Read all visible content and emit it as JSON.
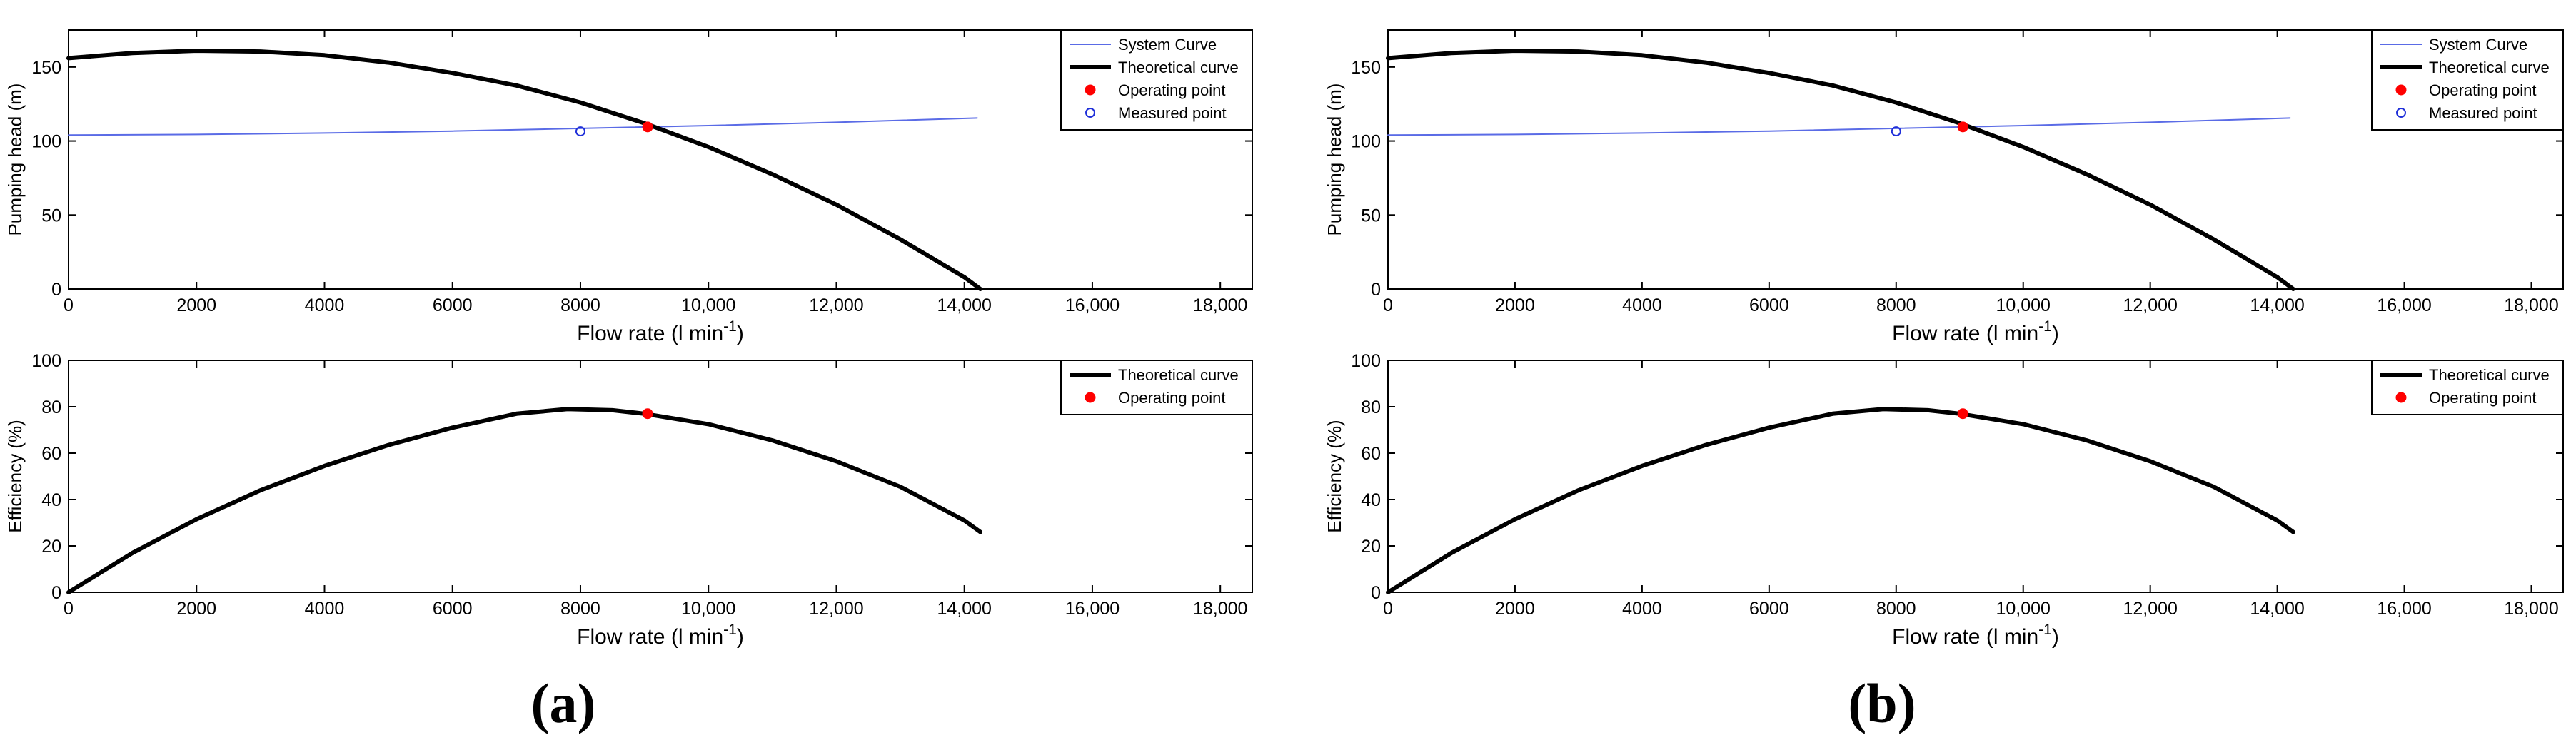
{
  "figure": {
    "panel_labels": [
      "(a)",
      "(b)"
    ]
  },
  "colors": {
    "system_curve": "#5A6BE6",
    "theoretical_curve": "#000000",
    "operating_point": "#FF0000",
    "measured_point": "#1F2FD9",
    "axes": "#000000"
  },
  "chart_data": [
    {
      "type": "line",
      "panel": "(a)",
      "subplot": "top",
      "xlabel": "Flow rate (l min",
      "xlabel_sup": "-1",
      "xlabel_close": ")",
      "ylabel": "Pumping head (m)",
      "xlim": [
        0,
        18500
      ],
      "ylim": [
        0,
        175
      ],
      "xticks": [
        0,
        2000,
        4000,
        6000,
        8000,
        10000,
        12000,
        14000,
        16000,
        18000
      ],
      "xtick_labels": [
        "0",
        "2000",
        "4000",
        "6000",
        "8000",
        "10,000",
        "12,000",
        "14,000",
        "16,000",
        "18,000"
      ],
      "yticks": [
        0,
        50,
        100,
        150
      ],
      "ytick_labels": [
        "0",
        "50",
        "100",
        "150"
      ],
      "grid": false,
      "legend_position": "top-right",
      "legend": [
        "System Curve",
        "Theoretical curve",
        "Operating point",
        "Measured point"
      ],
      "series": [
        {
          "name": "System Curve",
          "style": "thin-line",
          "color": "#5A6BE6",
          "x": [
            0,
            2000,
            4000,
            6000,
            8000,
            10000,
            12000,
            14200
          ],
          "y": [
            104,
            104.4,
            105.4,
            106.7,
            108.5,
            110.4,
            112.6,
            115.5
          ]
        },
        {
          "name": "Theoretical curve",
          "style": "thick-line",
          "color": "#000000",
          "x": [
            0,
            1000,
            2000,
            3000,
            4000,
            5000,
            6000,
            7000,
            8000,
            9000,
            10000,
            11000,
            12000,
            13000,
            14000,
            14250
          ],
          "y": [
            156,
            159.5,
            161,
            160.5,
            158,
            153,
            146,
            137.5,
            126,
            112,
            96,
            77.5,
            57,
            33.5,
            8,
            0
          ]
        },
        {
          "name": "Operating point",
          "style": "filled-marker",
          "color": "#FF0000",
          "x": [
            9050
          ],
          "y": [
            109.5
          ]
        },
        {
          "name": "Measured point",
          "style": "open-marker",
          "color": "#1F2FD9",
          "x": [
            8000
          ],
          "y": [
            106.5
          ]
        }
      ]
    },
    {
      "type": "line",
      "panel": "(a)",
      "subplot": "bottom",
      "xlabel": "Flow rate (l min",
      "xlabel_sup": "-1",
      "xlabel_close": ")",
      "ylabel": "Efficiency (%)",
      "xlim": [
        0,
        18500
      ],
      "ylim": [
        0,
        100
      ],
      "xticks": [
        0,
        2000,
        4000,
        6000,
        8000,
        10000,
        12000,
        14000,
        16000,
        18000
      ],
      "xtick_labels": [
        "0",
        "2000",
        "4000",
        "6000",
        "8000",
        "10,000",
        "12,000",
        "14,000",
        "16,000",
        "18,000"
      ],
      "yticks": [
        0,
        20,
        40,
        60,
        80,
        100
      ],
      "ytick_labels": [
        "0",
        "20",
        "40",
        "60",
        "80",
        "100"
      ],
      "grid": false,
      "legend_position": "top-right",
      "legend": [
        "Theoretical curve",
        "Operating point"
      ],
      "series": [
        {
          "name": "Theoretical curve",
          "style": "thick-line",
          "color": "#000000",
          "x": [
            0,
            1000,
            2000,
            3000,
            4000,
            5000,
            6000,
            7000,
            7800,
            8500,
            9000,
            10000,
            11000,
            12000,
            13000,
            14000,
            14250
          ],
          "y": [
            0,
            17,
            31.5,
            44,
            54.5,
            63.5,
            71,
            77,
            79,
            78.5,
            77,
            72.5,
            65.5,
            56.5,
            45.5,
            31,
            26
          ]
        },
        {
          "name": "Operating point",
          "style": "filled-marker",
          "color": "#FF0000",
          "x": [
            9050
          ],
          "y": [
            77
          ]
        }
      ]
    },
    {
      "type": "line",
      "panel": "(b)",
      "subplot": "top",
      "xlabel": "Flow rate (l min",
      "xlabel_sup": "-1",
      "xlabel_close": ")",
      "ylabel": "Pumping head (m)",
      "xlim": [
        0,
        18500
      ],
      "ylim": [
        0,
        175
      ],
      "xticks": [
        0,
        2000,
        4000,
        6000,
        8000,
        10000,
        12000,
        14000,
        16000,
        18000
      ],
      "xtick_labels": [
        "0",
        "2000",
        "4000",
        "6000",
        "8000",
        "10,000",
        "12,000",
        "14,000",
        "16,000",
        "18,000"
      ],
      "yticks": [
        0,
        50,
        100,
        150
      ],
      "ytick_labels": [
        "0",
        "50",
        "100",
        "150"
      ],
      "grid": false,
      "legend_position": "top-right",
      "legend": [
        "System Curve",
        "Theoretical curve",
        "Operating point",
        "Measured point"
      ],
      "series": [
        {
          "name": "System Curve",
          "style": "thin-line",
          "color": "#5A6BE6",
          "x": [
            0,
            2000,
            4000,
            6000,
            8000,
            10000,
            12000,
            14200
          ],
          "y": [
            104,
            104.4,
            105.4,
            106.7,
            108.5,
            110.4,
            112.6,
            115.5
          ]
        },
        {
          "name": "Theoretical curve",
          "style": "thick-line",
          "color": "#000000",
          "x": [
            0,
            1000,
            2000,
            3000,
            4000,
            5000,
            6000,
            7000,
            8000,
            9000,
            10000,
            11000,
            12000,
            13000,
            14000,
            14250
          ],
          "y": [
            156,
            159.5,
            161,
            160.5,
            158,
            153,
            146,
            137.5,
            126,
            112,
            96,
            77.5,
            57,
            33.5,
            8,
            0
          ]
        },
        {
          "name": "Operating point",
          "style": "filled-marker",
          "color": "#FF0000",
          "x": [
            9050
          ],
          "y": [
            109.5
          ]
        },
        {
          "name": "Measured point",
          "style": "open-marker",
          "color": "#1F2FD9",
          "x": [
            8000
          ],
          "y": [
            106.5
          ]
        }
      ]
    },
    {
      "type": "line",
      "panel": "(b)",
      "subplot": "bottom",
      "xlabel": "Flow rate (l min",
      "xlabel_sup": "-1",
      "xlabel_close": ")",
      "ylabel": "Efficiency (%)",
      "xlim": [
        0,
        18500
      ],
      "ylim": [
        0,
        100
      ],
      "xticks": [
        0,
        2000,
        4000,
        6000,
        8000,
        10000,
        12000,
        14000,
        16000,
        18000
      ],
      "xtick_labels": [
        "0",
        "2000",
        "4000",
        "6000",
        "8000",
        "10,000",
        "12,000",
        "14,000",
        "16,000",
        "18,000"
      ],
      "yticks": [
        0,
        20,
        40,
        60,
        80,
        100
      ],
      "ytick_labels": [
        "0",
        "20",
        "40",
        "60",
        "80",
        "100"
      ],
      "grid": false,
      "legend_position": "top-right",
      "legend": [
        "Theoretical curve",
        "Operating point"
      ],
      "series": [
        {
          "name": "Theoretical curve",
          "style": "thick-line",
          "color": "#000000",
          "x": [
            0,
            1000,
            2000,
            3000,
            4000,
            5000,
            6000,
            7000,
            7800,
            8500,
            9000,
            10000,
            11000,
            12000,
            13000,
            14000,
            14250
          ],
          "y": [
            0,
            17,
            31.5,
            44,
            54.5,
            63.5,
            71,
            77,
            79,
            78.5,
            77,
            72.5,
            65.5,
            56.5,
            45.5,
            31,
            26
          ]
        },
        {
          "name": "Operating point",
          "style": "filled-marker",
          "color": "#FF0000",
          "x": [
            9050
          ],
          "y": [
            77
          ]
        }
      ]
    }
  ]
}
